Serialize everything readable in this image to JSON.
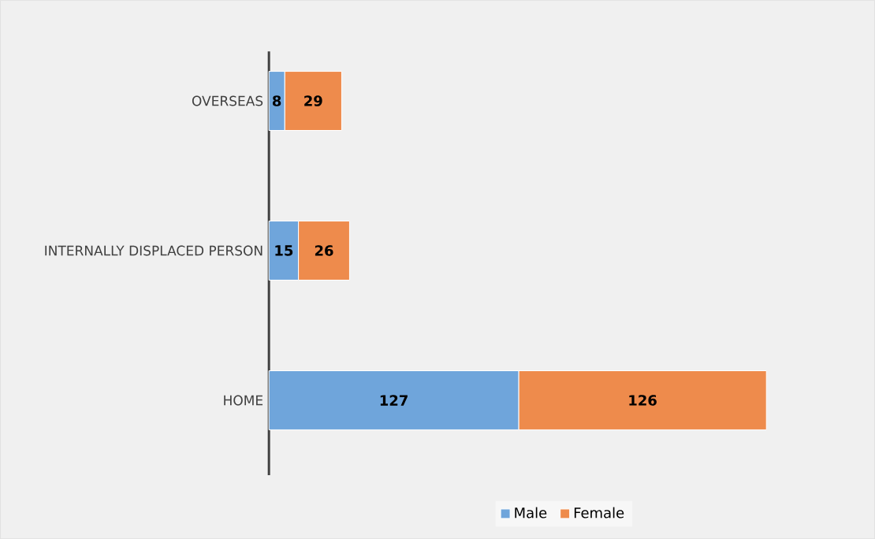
{
  "chart_data": {
    "type": "bar",
    "orientation": "horizontal",
    "stacked": true,
    "categories": [
      "OVERSEAS",
      "INTERNALLY DISPLACED PERSON",
      "HOME"
    ],
    "series": [
      {
        "name": "Male",
        "color": "#6fa5db",
        "values": [
          8,
          15,
          127
        ]
      },
      {
        "name": "Female",
        "color": "#ee8b4c",
        "values": [
          29,
          26,
          126
        ]
      }
    ],
    "data_labels": true,
    "legend": "bottom"
  }
}
